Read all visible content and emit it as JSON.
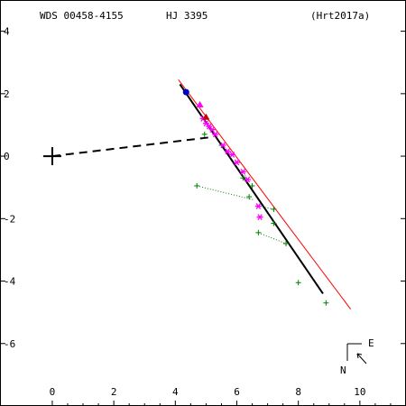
{
  "header": {
    "wds": "WDS 00458-4155",
    "name": "HJ 3395",
    "ref": "(Hrt2017a)"
  },
  "compass": {
    "east": "E",
    "north": "N"
  },
  "chart_data": {
    "type": "scatter",
    "title": "",
    "xlabel": "",
    "ylabel": "",
    "xlim": [
      -1.7,
      11.5
    ],
    "ylim": [
      -8.0,
      5.0
    ],
    "x_ticks": [
      0,
      2,
      4,
      6,
      8,
      10
    ],
    "y_ticks": [
      4,
      2,
      0,
      -2,
      -4,
      -6
    ],
    "primary": {
      "x": 0,
      "y": 0
    },
    "periastron_line": {
      "from": [
        0,
        0
      ],
      "to": [
        5.1,
        0.6
      ]
    },
    "orbit_fit": {
      "from": [
        4.15,
        2.3
      ],
      "to": [
        8.8,
        -4.4
      ]
    },
    "reference_line": {
      "from": [
        4.1,
        2.45
      ],
      "to": [
        9.7,
        -4.9
      ]
    },
    "series": [
      {
        "marker": "plus-green",
        "color": "#008000",
        "values": [
          [
            4.95,
            0.7
          ],
          [
            5.5,
            0.35
          ],
          [
            6.2,
            -0.7
          ],
          [
            6.5,
            -0.95
          ],
          [
            4.7,
            -0.95
          ],
          [
            7.2,
            -1.7
          ],
          [
            7.2,
            -2.15
          ],
          [
            6.7,
            -2.45
          ],
          [
            7.6,
            -2.8
          ],
          [
            8.0,
            -4.05
          ],
          [
            8.9,
            -4.7
          ],
          [
            6.4,
            -1.3
          ]
        ],
        "residuals": [
          [
            [
              4.95,
              0.7
            ],
            [
              5.0,
              0.75
            ]
          ],
          [
            [
              6.2,
              -0.7
            ],
            [
              6.3,
              -0.6
            ]
          ],
          [
            [
              4.7,
              -0.95
            ],
            [
              6.55,
              -1.4
            ]
          ],
          [
            [
              7.2,
              -1.7
            ],
            [
              6.75,
              -1.6
            ]
          ],
          [
            [
              6.7,
              -2.45
            ],
            [
              7.6,
              -2.8
            ]
          ]
        ]
      },
      {
        "marker": "asterisk-magenta",
        "color": "#ff00ff",
        "values": [
          [
            4.9,
            1.2
          ],
          [
            5.0,
            1.05
          ],
          [
            5.1,
            0.95
          ],
          [
            5.2,
            0.85
          ],
          [
            5.3,
            0.7
          ],
          [
            5.55,
            0.35
          ],
          [
            5.7,
            0.15
          ],
          [
            5.85,
            0.05
          ],
          [
            6.0,
            -0.2
          ],
          [
            6.2,
            -0.5
          ],
          [
            6.35,
            -0.75
          ],
          [
            6.7,
            -1.6
          ],
          [
            6.75,
            -1.95
          ]
        ]
      },
      {
        "marker": "triangle-magenta",
        "color": "#ff00ff",
        "values": [
          [
            4.8,
            1.65
          ]
        ]
      },
      {
        "marker": "triangle-red",
        "color": "#cc0000",
        "values": [
          [
            5.0,
            1.25
          ]
        ]
      },
      {
        "marker": "circle-blue",
        "color": "#0000cc",
        "values": [
          [
            4.35,
            2.05
          ]
        ]
      }
    ]
  }
}
